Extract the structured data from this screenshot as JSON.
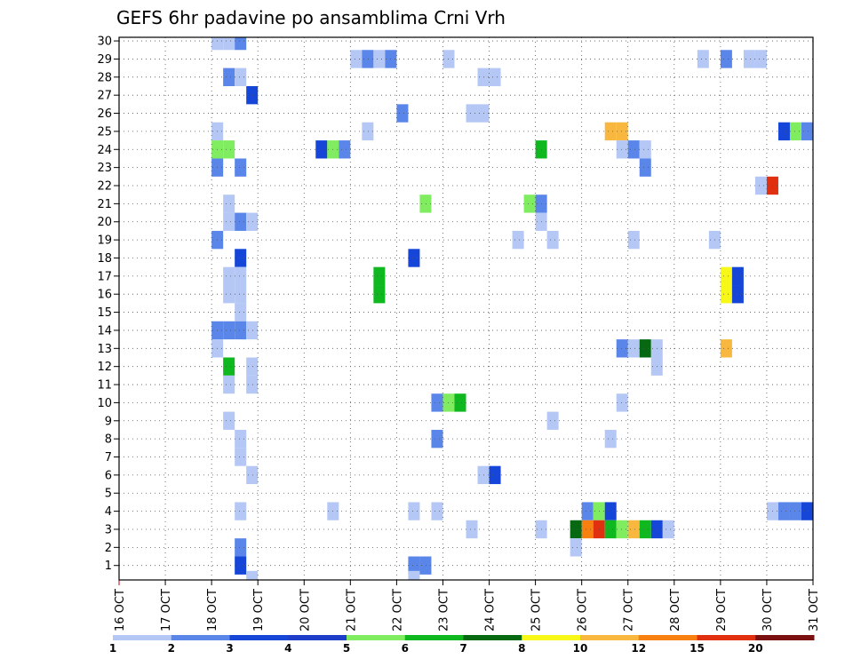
{
  "chart_data": {
    "type": "heatmap",
    "title": "GEFS 6hr padavine po ansamblima Crni Vrh",
    "x_tick_labels": [
      "16 OCT",
      "17 OCT",
      "18 OCT",
      "19 OCT",
      "20 OCT",
      "21 OCT",
      "22 OCT",
      "23 OCT",
      "24 OCT",
      "25 OCT",
      "26 OCT",
      "27 OCT",
      "28 OCT",
      "29 OCT",
      "30 OCT",
      "31 OCT"
    ],
    "xlim_days": [
      16,
      31
    ],
    "steps_per_day": 4,
    "y_tick_labels": [
      "1",
      "2",
      "3",
      "4",
      "5",
      "6",
      "7",
      "8",
      "9",
      "10",
      "11",
      "12",
      "13",
      "14",
      "15",
      "16",
      "17",
      "18",
      "19",
      "20",
      "21",
      "22",
      "23",
      "24",
      "25",
      "26",
      "27",
      "28",
      "29",
      "30"
    ],
    "ylim": [
      0.2,
      30.2
    ],
    "grid": true,
    "legend": {
      "position": "bottom",
      "labels": [
        "1",
        "2",
        "3",
        "4",
        "5",
        "6",
        "7",
        "8",
        "10",
        "12",
        "15",
        "20"
      ],
      "colors": [
        "#b5c8f5",
        "#5a86ea",
        "#1546d8",
        "#1e3ec9",
        "#80ec60",
        "#10b820",
        "#066810",
        "#f8f818",
        "#f8b840",
        "#f88010",
        "#e03010",
        "#7a1010"
      ]
    },
    "levels": [
      {
        "level": 1,
        "color": "#b5c8f5"
      },
      {
        "level": 2,
        "color": "#5a86ea"
      },
      {
        "level": 3,
        "color": "#1546d8"
      },
      {
        "level": 5,
        "color": "#80ec60"
      },
      {
        "level": 6,
        "color": "#10b820"
      },
      {
        "level": 7,
        "color": "#066810"
      },
      {
        "level": 8,
        "color": "#f8f818"
      },
      {
        "level": 10,
        "color": "#f8b840"
      },
      {
        "level": 12,
        "color": "#f88010"
      },
      {
        "level": 15,
        "color": "#e03010"
      }
    ],
    "cells": [
      [
        18.0,
        30,
        1
      ],
      [
        18.25,
        30,
        1
      ],
      [
        18.5,
        30,
        2
      ],
      [
        21.0,
        29,
        1
      ],
      [
        21.25,
        29,
        2
      ],
      [
        21.5,
        29,
        1
      ],
      [
        21.75,
        29,
        2
      ],
      [
        23.0,
        29,
        1
      ],
      [
        28.5,
        29,
        1
      ],
      [
        29.0,
        29,
        2
      ],
      [
        29.5,
        29,
        1
      ],
      [
        29.75,
        29,
        1
      ],
      [
        18.25,
        28,
        2
      ],
      [
        18.5,
        28,
        1
      ],
      [
        23.75,
        28,
        1
      ],
      [
        24.0,
        28,
        1
      ],
      [
        18.75,
        27,
        3
      ],
      [
        22.0,
        26,
        2
      ],
      [
        23.5,
        26,
        1
      ],
      [
        23.75,
        26,
        1
      ],
      [
        18.0,
        25,
        1
      ],
      [
        21.25,
        25,
        1
      ],
      [
        26.5,
        25,
        10
      ],
      [
        26.75,
        25,
        10
      ],
      [
        30.25,
        25,
        3
      ],
      [
        30.5,
        25,
        5
      ],
      [
        30.75,
        25,
        2
      ],
      [
        18.0,
        24,
        5
      ],
      [
        18.25,
        24,
        5
      ],
      [
        20.25,
        24,
        3
      ],
      [
        20.5,
        24,
        5
      ],
      [
        20.75,
        24,
        2
      ],
      [
        25.0,
        24,
        6
      ],
      [
        26.75,
        24,
        1
      ],
      [
        27.0,
        24,
        2
      ],
      [
        27.25,
        24,
        1
      ],
      [
        18.0,
        23,
        2
      ],
      [
        18.5,
        23,
        2
      ],
      [
        27.25,
        23,
        2
      ],
      [
        29.75,
        22,
        1
      ],
      [
        30.0,
        22,
        15
      ],
      [
        18.25,
        21,
        1
      ],
      [
        22.5,
        21,
        5
      ],
      [
        24.75,
        21,
        5
      ],
      [
        25.0,
        21,
        2
      ],
      [
        18.25,
        20,
        1
      ],
      [
        18.5,
        20,
        2
      ],
      [
        18.75,
        20,
        1
      ],
      [
        25.0,
        20,
        1
      ],
      [
        18.0,
        19,
        2
      ],
      [
        24.5,
        19,
        1
      ],
      [
        25.25,
        19,
        1
      ],
      [
        27.0,
        19,
        1
      ],
      [
        28.75,
        19,
        1
      ],
      [
        18.5,
        18,
        3
      ],
      [
        22.25,
        18,
        3
      ],
      [
        18.25,
        17,
        1
      ],
      [
        18.5,
        17,
        1
      ],
      [
        21.5,
        17,
        6
      ],
      [
        29.0,
        17,
        8
      ],
      [
        29.25,
        17,
        3
      ],
      [
        18.25,
        16,
        1
      ],
      [
        18.5,
        16,
        1
      ],
      [
        21.5,
        16,
        6
      ],
      [
        29.0,
        16,
        8
      ],
      [
        29.25,
        16,
        3
      ],
      [
        18.5,
        15,
        1
      ],
      [
        18.0,
        14,
        2
      ],
      [
        18.25,
        14,
        2
      ],
      [
        18.5,
        14,
        2
      ],
      [
        18.75,
        14,
        1
      ],
      [
        18.0,
        13,
        1
      ],
      [
        26.75,
        13,
        2
      ],
      [
        27.0,
        13,
        1
      ],
      [
        27.25,
        13,
        7
      ],
      [
        27.5,
        13,
        1
      ],
      [
        29.0,
        13,
        10
      ],
      [
        18.25,
        12,
        6
      ],
      [
        18.75,
        12,
        1
      ],
      [
        27.5,
        12,
        1
      ],
      [
        18.25,
        11,
        1
      ],
      [
        18.75,
        11,
        1
      ],
      [
        22.75,
        10,
        2
      ],
      [
        23.0,
        10,
        5
      ],
      [
        23.25,
        10,
        6
      ],
      [
        26.75,
        10,
        1
      ],
      [
        18.25,
        9,
        1
      ],
      [
        25.25,
        9,
        1
      ],
      [
        18.5,
        8,
        1
      ],
      [
        22.75,
        8,
        2
      ],
      [
        26.5,
        8,
        1
      ],
      [
        18.5,
        7,
        1
      ],
      [
        18.75,
        6,
        1
      ],
      [
        23.75,
        6,
        1
      ],
      [
        24.0,
        6,
        3
      ],
      [
        20.5,
        4,
        1
      ],
      [
        22.25,
        4,
        1
      ],
      [
        22.75,
        4,
        1
      ],
      [
        18.5,
        4,
        1
      ],
      [
        26.0,
        4,
        2
      ],
      [
        26.25,
        4,
        5
      ],
      [
        26.5,
        4,
        3
      ],
      [
        30.0,
        4,
        1
      ],
      [
        30.25,
        4,
        2
      ],
      [
        30.5,
        4,
        2
      ],
      [
        30.75,
        4,
        3
      ],
      [
        23.5,
        3,
        1
      ],
      [
        25.0,
        3,
        1
      ],
      [
        25.75,
        3,
        7
      ],
      [
        26.0,
        3,
        12
      ],
      [
        26.25,
        3,
        15
      ],
      [
        26.5,
        3,
        6
      ],
      [
        26.75,
        3,
        5
      ],
      [
        27.0,
        3,
        10
      ],
      [
        27.25,
        3,
        6
      ],
      [
        27.5,
        3,
        3
      ],
      [
        27.75,
        3,
        1
      ],
      [
        18.5,
        2,
        2
      ],
      [
        25.75,
        2,
        1
      ],
      [
        18.5,
        1,
        3
      ],
      [
        22.25,
        1,
        2
      ],
      [
        22.5,
        1,
        2
      ],
      [
        18.75,
        0.2,
        1
      ],
      [
        22.25,
        0.2,
        1
      ]
    ]
  }
}
